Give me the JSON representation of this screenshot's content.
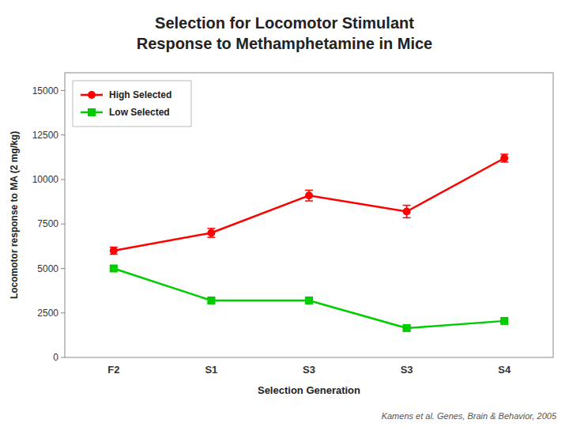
{
  "chart_data": {
    "type": "line",
    "title": "Selection for Locomotor Stimulant",
    "subtitle": "Response to Methamphetamine in Mice",
    "x_label": "Selection Generation",
    "y_label": "Locomotor response to MA (2 mg/kg)",
    "categories": [
      "F2",
      "S1",
      "S3",
      "S3",
      "S4"
    ],
    "series": [
      {
        "name": "High Selected",
        "color": "#FF0000",
        "marker": "circle",
        "values": [
          6000,
          7000,
          9100,
          8200,
          11200
        ],
        "errors": [
          200,
          250,
          300,
          350,
          220
        ]
      },
      {
        "name": "Low Selected",
        "color": "#00CC00",
        "marker": "square",
        "values": [
          5000,
          3200,
          3200,
          1650,
          2050
        ],
        "errors": [
          120,
          130,
          130,
          120,
          120
        ]
      }
    ],
    "ylim": [
      0,
      16000
    ],
    "yticks": [
      0,
      2500,
      5000,
      7500,
      10000,
      12500,
      15000
    ],
    "grid": false,
    "legend": "upper left",
    "annotations": [
      "Kamens et al. Genes, Brain & Behavior, 2005"
    ]
  }
}
